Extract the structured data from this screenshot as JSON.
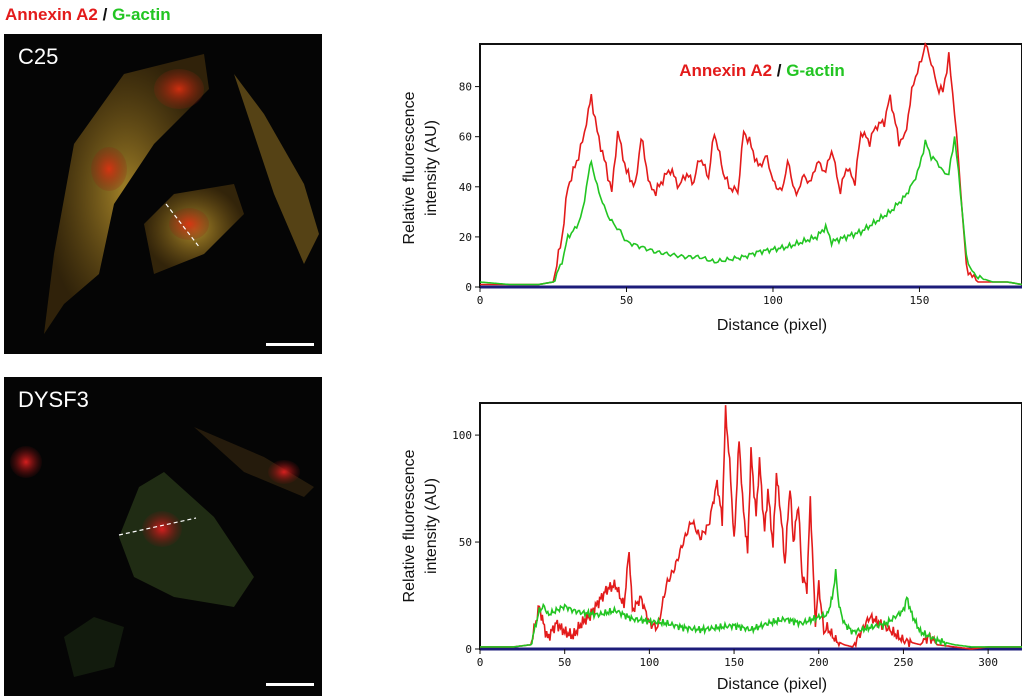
{
  "figure_label": {
    "annexin": "Annexin A2",
    "slash": " / ",
    "gactin": "G-actin"
  },
  "panels": [
    {
      "label": "C25"
    },
    {
      "label": "DYSF3"
    }
  ],
  "colors": {
    "annexin": "#e31b1b",
    "gactin": "#22c522",
    "baseline": "#1c1c7a"
  },
  "chart_data": [
    {
      "type": "line",
      "title": "",
      "legend": {
        "annexin": "Annexin A2",
        "slash": " / ",
        "gactin": "G-actin",
        "placement": "top-center"
      },
      "xlabel": "Distance (pixel)",
      "ylabel_line1": "Relative fluorescence",
      "ylabel_line2": "intensity (AU)",
      "xlim": [
        0,
        185
      ],
      "ylim": [
        0,
        97
      ],
      "xticks": [
        0,
        50,
        100,
        150
      ],
      "yticks": [
        0,
        20,
        40,
        60,
        80
      ],
      "series": [
        {
          "name": "Annexin A2",
          "color": "#e31b1b",
          "x": [
            0,
            10,
            20,
            25,
            28,
            30,
            33,
            35,
            37,
            38,
            40,
            43,
            45,
            47,
            50,
            53,
            55,
            58,
            60,
            63,
            65,
            68,
            70,
            73,
            75,
            78,
            80,
            83,
            85,
            88,
            90,
            92,
            95,
            98,
            100,
            103,
            105,
            108,
            110,
            113,
            115,
            118,
            120,
            123,
            125,
            128,
            130,
            133,
            135,
            138,
            140,
            143,
            145,
            148,
            150,
            152,
            154,
            156,
            158,
            160,
            162,
            164,
            166,
            168,
            170,
            175,
            180,
            185
          ],
          "y": [
            1,
            1,
            1,
            2,
            20,
            40,
            50,
            58,
            70,
            76,
            62,
            48,
            38,
            62,
            46,
            40,
            60,
            40,
            38,
            44,
            47,
            40,
            45,
            42,
            52,
            44,
            62,
            46,
            40,
            38,
            62,
            58,
            48,
            52,
            42,
            38,
            50,
            36,
            44,
            42,
            50,
            46,
            55,
            38,
            48,
            42,
            62,
            58,
            64,
            66,
            76,
            58,
            60,
            82,
            88,
            97,
            90,
            80,
            78,
            92,
            70,
            40,
            8,
            4,
            2,
            2,
            2,
            1
          ]
        },
        {
          "name": "G-actin",
          "color": "#22c522",
          "x": [
            0,
            10,
            20,
            25,
            28,
            30,
            33,
            35,
            37,
            38,
            40,
            43,
            45,
            48,
            50,
            55,
            60,
            65,
            70,
            75,
            80,
            85,
            90,
            95,
            100,
            105,
            110,
            115,
            118,
            120,
            125,
            130,
            135,
            140,
            145,
            148,
            150,
            152,
            154,
            156,
            158,
            160,
            162,
            164,
            166,
            168,
            170,
            175,
            180,
            185
          ],
          "y": [
            2,
            1,
            1,
            2,
            10,
            20,
            24,
            30,
            45,
            50,
            40,
            30,
            26,
            22,
            18,
            16,
            14,
            13,
            12,
            12,
            10,
            11,
            12,
            14,
            15,
            16,
            18,
            20,
            24,
            18,
            20,
            22,
            26,
            30,
            36,
            42,
            48,
            58,
            52,
            50,
            46,
            45,
            60,
            38,
            12,
            6,
            4,
            2,
            2,
            1
          ]
        }
      ]
    },
    {
      "type": "line",
      "title": "",
      "xlabel": "Distance (pixel)",
      "ylabel_line1": "Relative fluorescence",
      "ylabel_line2": "intensity (AU)",
      "xlim": [
        0,
        320
      ],
      "ylim": [
        0,
        115
      ],
      "xticks": [
        0,
        50,
        100,
        150,
        200,
        250,
        300
      ],
      "yticks": [
        0,
        50,
        100
      ],
      "series": [
        {
          "name": "Annexin A2",
          "color": "#e31b1b",
          "x": [
            0,
            10,
            20,
            30,
            35,
            38,
            40,
            45,
            50,
            55,
            60,
            65,
            70,
            75,
            80,
            85,
            88,
            90,
            95,
            100,
            105,
            110,
            115,
            120,
            125,
            130,
            135,
            140,
            143,
            145,
            148,
            150,
            153,
            155,
            158,
            160,
            163,
            165,
            168,
            170,
            173,
            175,
            178,
            180,
            183,
            185,
            188,
            190,
            193,
            195,
            198,
            200,
            203,
            205,
            210,
            215,
            220,
            225,
            230,
            240,
            250,
            260,
            265,
            270,
            280,
            290,
            300,
            310,
            320
          ],
          "y": [
            1,
            1,
            1,
            2,
            20,
            10,
            5,
            12,
            8,
            6,
            12,
            16,
            22,
            28,
            30,
            20,
            46,
            18,
            24,
            12,
            10,
            30,
            38,
            50,
            60,
            52,
            58,
            78,
            60,
            112,
            80,
            50,
            98,
            70,
            45,
            92,
            62,
            88,
            55,
            74,
            48,
            82,
            60,
            40,
            76,
            50,
            68,
            35,
            28,
            70,
            12,
            30,
            8,
            10,
            4,
            2,
            1,
            8,
            15,
            10,
            4,
            2,
            6,
            2,
            1,
            0,
            1,
            1,
            1
          ]
        },
        {
          "name": "G-actin",
          "color": "#22c522",
          "x": [
            0,
            10,
            20,
            30,
            35,
            38,
            40,
            45,
            50,
            55,
            60,
            70,
            80,
            90,
            100,
            110,
            120,
            130,
            140,
            150,
            160,
            170,
            180,
            190,
            200,
            205,
            208,
            210,
            212,
            215,
            220,
            230,
            240,
            250,
            252,
            255,
            260,
            270,
            280,
            290,
            300,
            310,
            320
          ],
          "y": [
            1,
            1,
            1,
            2,
            18,
            20,
            16,
            18,
            20,
            18,
            17,
            16,
            18,
            14,
            13,
            12,
            10,
            9,
            10,
            11,
            9,
            12,
            14,
            12,
            15,
            16,
            24,
            36,
            20,
            12,
            8,
            10,
            12,
            18,
            24,
            16,
            8,
            4,
            2,
            1,
            1,
            1,
            1
          ]
        }
      ]
    }
  ]
}
